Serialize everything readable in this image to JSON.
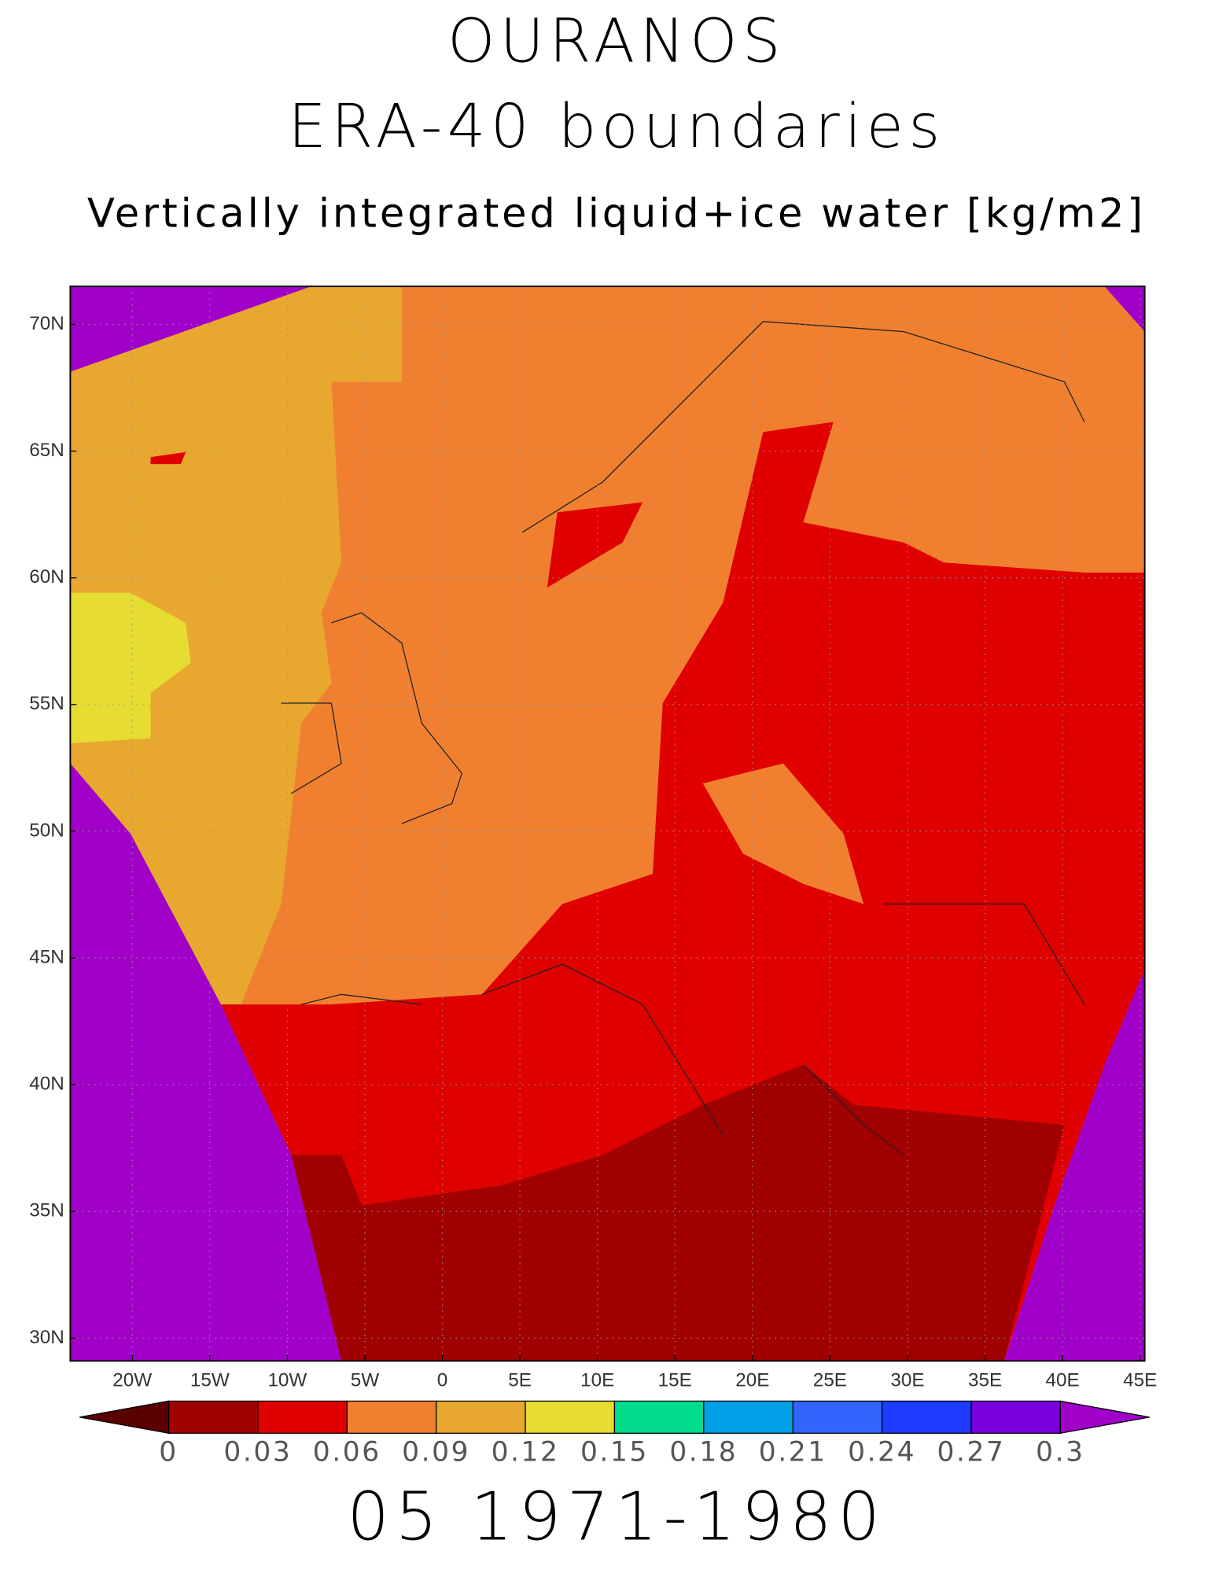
{
  "title": "OURANOS",
  "subtitle": "ERA-40 boundaries",
  "variable": "Vertically integrated liquid+ice water [kg/m2]",
  "map": {
    "xlim": [
      -24,
      45.3
    ],
    "ylim": [
      29.1,
      71.5
    ],
    "xticks": [
      {
        "value": -20,
        "label": "20W"
      },
      {
        "value": -15,
        "label": "15W"
      },
      {
        "value": -10,
        "label": "10W"
      },
      {
        "value": -5,
        "label": "5W"
      },
      0,
      {
        "value": 5,
        "label": "5E"
      },
      {
        "value": 10,
        "label": "10E"
      },
      {
        "value": 15,
        "label": "15E"
      },
      {
        "value": 20,
        "label": "20E"
      },
      {
        "value": 25,
        "label": "25E"
      },
      {
        "value": 30,
        "label": "30E"
      },
      {
        "value": 35,
        "label": "35E"
      },
      {
        "value": 40,
        "label": "40E"
      },
      {
        "value": 45,
        "label": "45E"
      }
    ],
    "yticks": [
      {
        "value": 30,
        "label": "30N"
      },
      {
        "value": 35,
        "label": "35N"
      },
      {
        "value": 40,
        "label": "40N"
      },
      {
        "value": 45,
        "label": "45N"
      },
      {
        "value": 50,
        "label": "50N"
      },
      {
        "value": 55,
        "label": "55N"
      },
      {
        "value": 60,
        "label": "60N"
      },
      {
        "value": 65,
        "label": "65N"
      },
      {
        "value": 70,
        "label": "70N"
      }
    ],
    "grid": true
  },
  "colorbar": {
    "levels": [
      0,
      0.03,
      0.06,
      0.09,
      0.12,
      0.15,
      0.18,
      0.21,
      0.24,
      0.27,
      0.3
    ],
    "colors": [
      "#5a0000",
      "#a00000",
      "#e00000",
      "#f08030",
      "#e8a830",
      "#e6dc32",
      "#00dc8c",
      "#00a0e6",
      "#3264ff",
      "#1e3cff",
      "#7800dc",
      "#a000c8"
    ]
  },
  "footer": "05 1971-1980"
}
